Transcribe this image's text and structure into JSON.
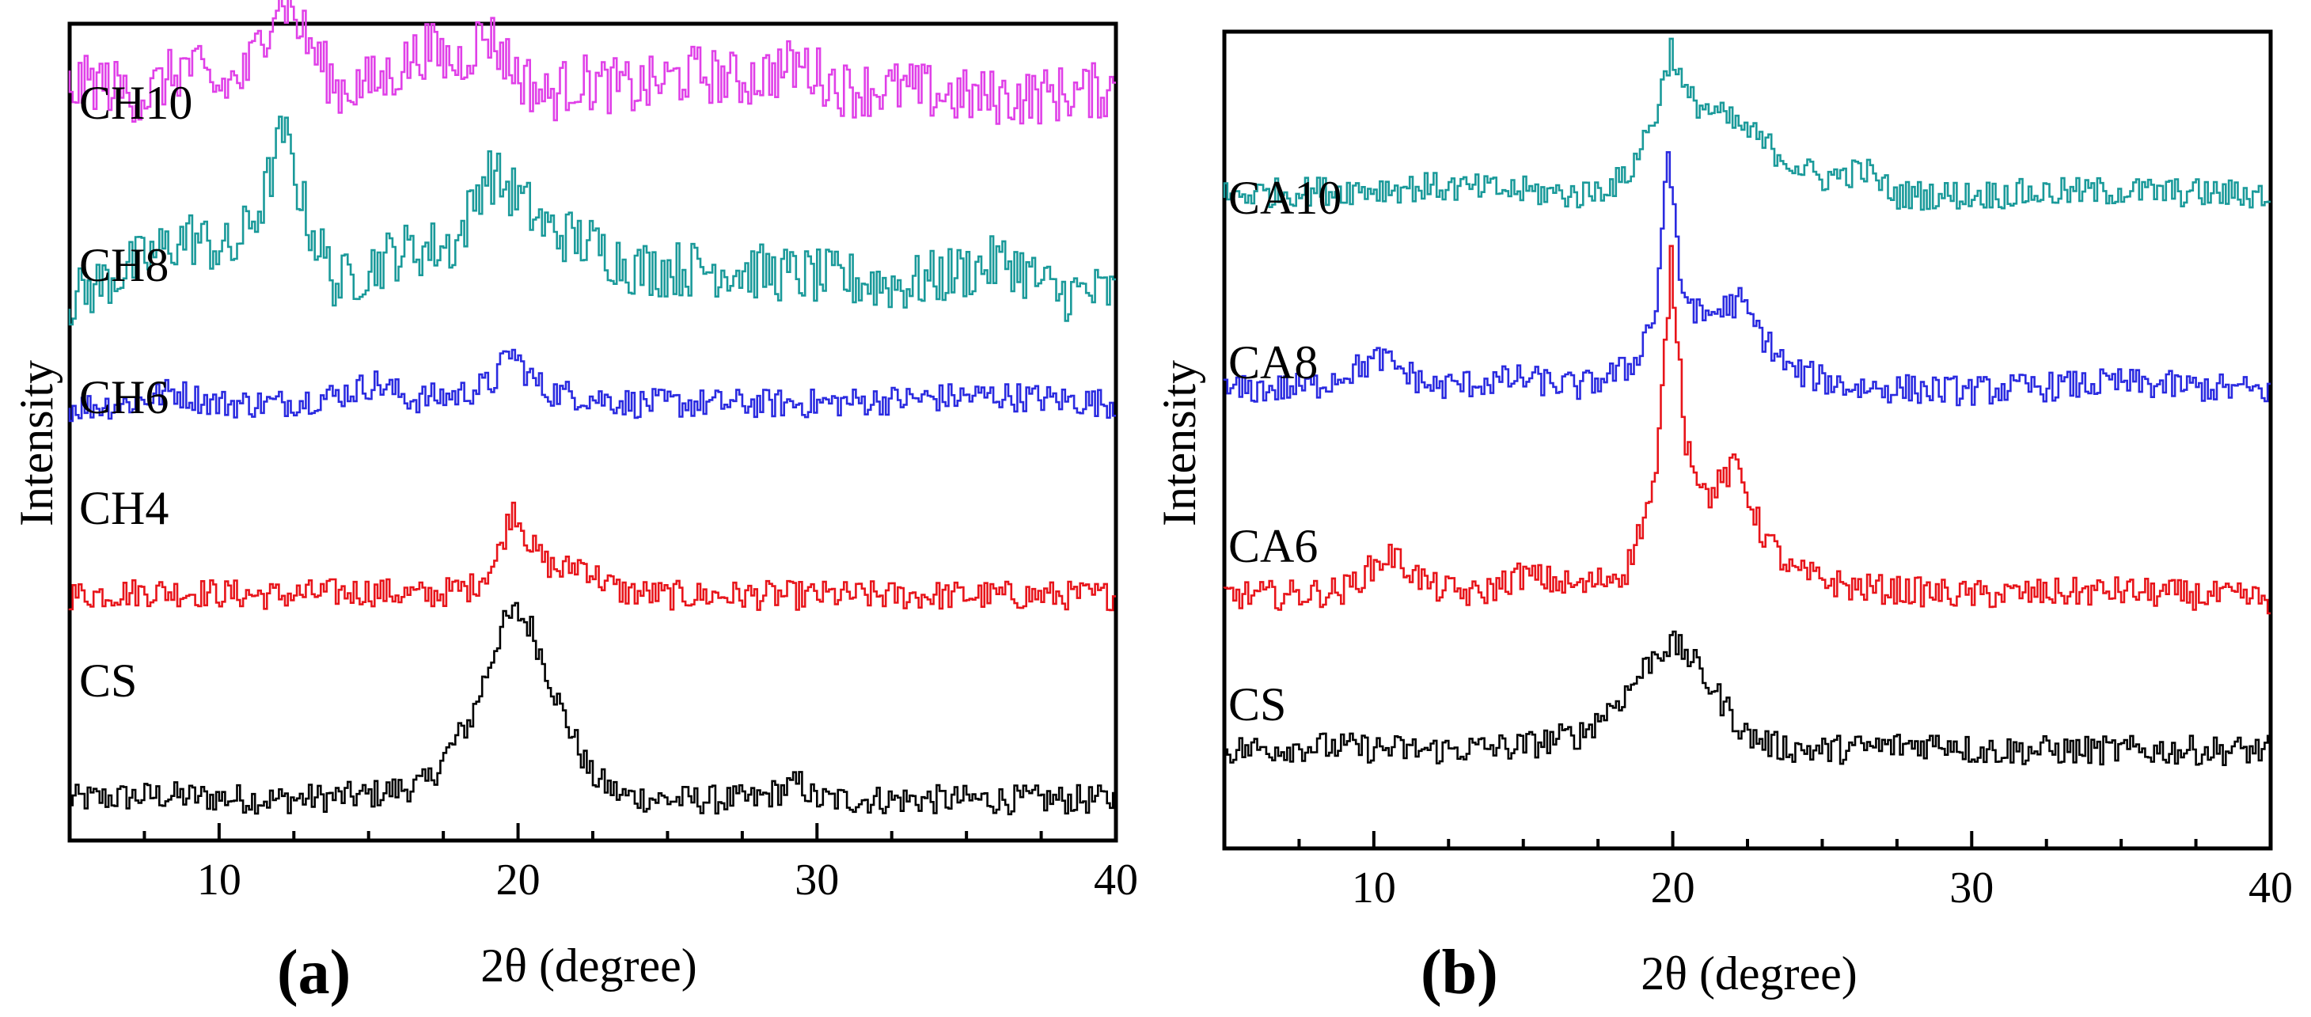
{
  "chart_data": [
    {
      "type": "line",
      "panel_label": "(a)",
      "xlabel": "2θ (degree)",
      "ylabel": "Intensity",
      "xlim": [
        5,
        40
      ],
      "x_ticks": [
        10,
        20,
        30,
        40
      ],
      "grid": false,
      "legend": "none",
      "series": [
        {
          "name": "CS",
          "color": "#000000",
          "baseline": 0.05,
          "x": [
            5,
            8,
            12,
            15,
            17,
            18.5,
            19.5,
            20,
            20.5,
            21.5,
            22.5,
            23.5,
            25,
            28,
            29.5,
            30,
            33,
            36,
            40
          ],
          "y": [
            0.05,
            0.055,
            0.05,
            0.055,
            0.07,
            0.15,
            0.26,
            0.28,
            0.26,
            0.16,
            0.08,
            0.055,
            0.05,
            0.05,
            0.07,
            0.05,
            0.05,
            0.05,
            0.05
          ]
        },
        {
          "name": "CH4",
          "color": "#e8141a",
          "baseline": 0.3,
          "x": [
            5,
            8,
            12,
            15,
            17,
            18.5,
            19.3,
            19.9,
            20.5,
            21,
            21.5,
            22.2,
            22.8,
            23.5,
            25,
            30,
            35,
            40
          ],
          "y": [
            0.3,
            0.305,
            0.3,
            0.305,
            0.3,
            0.31,
            0.34,
            0.41,
            0.36,
            0.34,
            0.33,
            0.34,
            0.32,
            0.305,
            0.3,
            0.3,
            0.3,
            0.3
          ]
        },
        {
          "name": "CH6",
          "color": "#2a2ae0",
          "baseline": 0.53,
          "x": [
            5,
            7,
            8.5,
            10,
            12,
            14,
            15.3,
            16.5,
            18,
            19.2,
            19.8,
            20.4,
            21,
            22,
            24,
            30,
            36,
            40
          ],
          "y": [
            0.53,
            0.535,
            0.55,
            0.535,
            0.535,
            0.545,
            0.56,
            0.54,
            0.545,
            0.56,
            0.6,
            0.57,
            0.55,
            0.545,
            0.535,
            0.535,
            0.545,
            0.535
          ]
        },
        {
          "name": "CH8",
          "color": "#1a9a9a",
          "baseline": 0.67,
          "x": [
            5,
            7,
            9,
            10.5,
            11.5,
            12.2,
            13,
            14,
            16,
            18,
            19,
            20,
            21,
            22.5,
            24,
            27,
            30,
            33,
            36.5,
            38,
            40
          ],
          "y": [
            0.66,
            0.7,
            0.74,
            0.72,
            0.78,
            0.87,
            0.76,
            0.68,
            0.72,
            0.73,
            0.82,
            0.79,
            0.75,
            0.73,
            0.7,
            0.7,
            0.69,
            0.68,
            0.71,
            0.67,
            0.67
          ]
        },
        {
          "name": "CH10",
          "color": "#e040e8",
          "baseline": 0.9,
          "x": [
            5,
            6,
            7.5,
            9,
            10,
            11,
            12.1,
            13,
            14,
            15.5,
            17,
            18,
            19,
            20,
            21,
            22,
            24,
            26,
            27.5,
            29.5,
            31,
            33,
            35,
            37,
            40
          ],
          "y": [
            0.92,
            0.93,
            0.91,
            0.95,
            0.92,
            0.94,
            1.04,
            0.98,
            0.92,
            0.93,
            0.97,
            0.95,
            0.99,
            0.94,
            0.91,
            0.93,
            0.92,
            0.94,
            0.93,
            0.95,
            0.92,
            0.92,
            0.91,
            0.91,
            0.92
          ]
        }
      ]
    },
    {
      "type": "line",
      "panel_label": "(b)",
      "xlabel": "2θ (degree)",
      "ylabel": "Intensity",
      "xlim": [
        5,
        40
      ],
      "x_ticks": [
        10,
        20,
        30,
        40
      ],
      "grid": false,
      "legend": "none",
      "series": [
        {
          "name": "CS",
          "color": "#000000",
          "baseline": 0.12,
          "x": [
            5,
            8,
            12,
            15,
            17,
            18.5,
            19.5,
            20,
            20.5,
            21.5,
            22.5,
            23.5,
            25,
            29.5,
            30,
            35,
            40
          ],
          "y": [
            0.12,
            0.125,
            0.12,
            0.125,
            0.14,
            0.19,
            0.24,
            0.25,
            0.24,
            0.19,
            0.14,
            0.125,
            0.12,
            0.13,
            0.12,
            0.12,
            0.12
          ]
        },
        {
          "name": "CA6",
          "color": "#e8141a",
          "baseline": 0.3,
          "x": [
            5,
            7,
            9,
            10.6,
            12,
            13.5,
            15,
            17,
            18.5,
            19.5,
            20,
            20.5,
            21.2,
            22.2,
            23,
            24,
            26,
            30,
            35,
            40
          ],
          "y": [
            0.31,
            0.31,
            0.315,
            0.36,
            0.32,
            0.31,
            0.335,
            0.32,
            0.34,
            0.45,
            0.72,
            0.5,
            0.43,
            0.47,
            0.39,
            0.34,
            0.32,
            0.31,
            0.315,
            0.305
          ]
        },
        {
          "name": "CA8",
          "color": "#2a2ae0",
          "baseline": 0.55,
          "x": [
            5,
            8,
            10.3,
            12,
            15,
            17,
            18.7,
            19.5,
            19.9,
            20.3,
            21,
            22.3,
            23,
            24,
            26,
            30,
            35,
            40
          ],
          "y": [
            0.56,
            0.565,
            0.6,
            0.565,
            0.575,
            0.565,
            0.59,
            0.66,
            0.86,
            0.69,
            0.65,
            0.67,
            0.63,
            0.585,
            0.565,
            0.56,
            0.57,
            0.56
          ]
        },
        {
          "name": "CA10",
          "color": "#1a9a9a",
          "baseline": 0.8,
          "x": [
            5,
            8,
            12,
            15,
            17,
            18.5,
            19.5,
            20,
            20.5,
            21.5,
            22.5,
            24,
            25,
            26.5,
            27.5,
            30,
            35,
            40
          ],
          "y": [
            0.8,
            0.805,
            0.81,
            0.805,
            0.8,
            0.82,
            0.9,
            0.98,
            0.92,
            0.9,
            0.88,
            0.84,
            0.82,
            0.83,
            0.8,
            0.8,
            0.805,
            0.8
          ]
        }
      ]
    }
  ]
}
